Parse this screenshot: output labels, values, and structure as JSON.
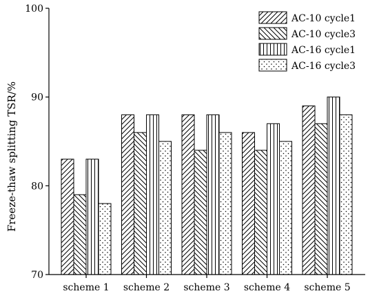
{
  "chart_data": {
    "type": "bar",
    "title": "",
    "xlabel": "",
    "ylabel": "Freeze-thaw splitting TSR/%",
    "ylim": [
      70,
      100
    ],
    "yticks": [
      70,
      80,
      90,
      100
    ],
    "grid": false,
    "legend_position": "top-right",
    "categories": [
      "scheme 1",
      "scheme 2",
      "scheme 3",
      "scheme 4",
      "scheme 5"
    ],
    "series": [
      {
        "name": "AC-10 cycle1",
        "pattern": "diagonal-forward",
        "values": [
          83,
          88,
          88,
          86,
          89
        ]
      },
      {
        "name": "AC-10 cycle3",
        "pattern": "diagonal-backward",
        "values": [
          79,
          86,
          84,
          84,
          87
        ]
      },
      {
        "name": "AC-16 cycle1",
        "pattern": "vertical-lines",
        "values": [
          83,
          88,
          88,
          87,
          90
        ]
      },
      {
        "name": "AC-16 cycle3",
        "pattern": "dots",
        "values": [
          78,
          85,
          86,
          85,
          88
        ]
      }
    ],
    "colors": {
      "bar_stroke": "#000000",
      "bar_fill": "#ffffff"
    }
  }
}
